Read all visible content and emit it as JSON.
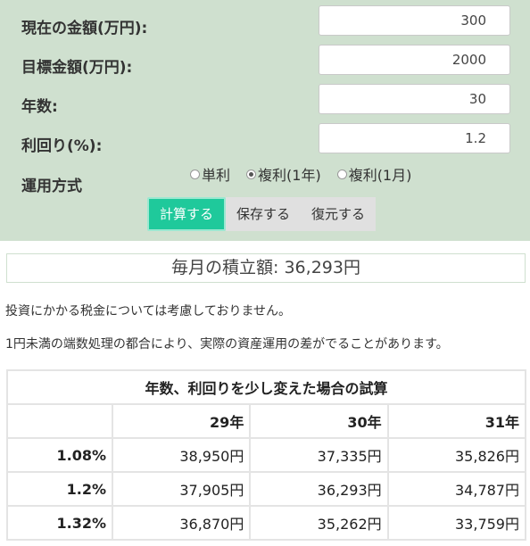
{
  "form": {
    "current_amount": {
      "label": "現在の金額(万円):",
      "value": "300"
    },
    "target_amount": {
      "label": "目標金額(万円):",
      "value": "2000"
    },
    "years": {
      "label": "年数:",
      "value": "30"
    },
    "yield": {
      "label": "利回り(%):",
      "value": "1.2"
    },
    "method": {
      "label": "運用方式",
      "options": [
        {
          "label": "単利",
          "checked": false
        },
        {
          "label": "複利(1年)",
          "checked": true
        },
        {
          "label": "複利(1月)",
          "checked": false
        }
      ]
    }
  },
  "buttons": {
    "calculate": "計算する",
    "save": "保存する",
    "restore": "復元する"
  },
  "result": {
    "text": "毎月の積立額: 36,293円"
  },
  "notes": [
    "投資にかかる税金については考慮しておりません。",
    "1円未満の端数処理の都合により、実際の資産運用の差がでることがあります。"
  ],
  "simulation_table": {
    "title": "年数、利回りを少し変えた場合の試算",
    "columns": [
      "29年",
      "30年",
      "31年"
    ],
    "rows": [
      {
        "rate": "1.08%",
        "values": [
          "38,950円",
          "37,335円",
          "35,826円"
        ]
      },
      {
        "rate": "1.2%",
        "values": [
          "37,905円",
          "36,293円",
          "34,787円"
        ]
      },
      {
        "rate": "1.32%",
        "values": [
          "36,870円",
          "35,262円",
          "33,759円"
        ]
      }
    ]
  },
  "colors": {
    "panel_bg": "#cfe0cf",
    "primary_button": "#1fc99b"
  }
}
